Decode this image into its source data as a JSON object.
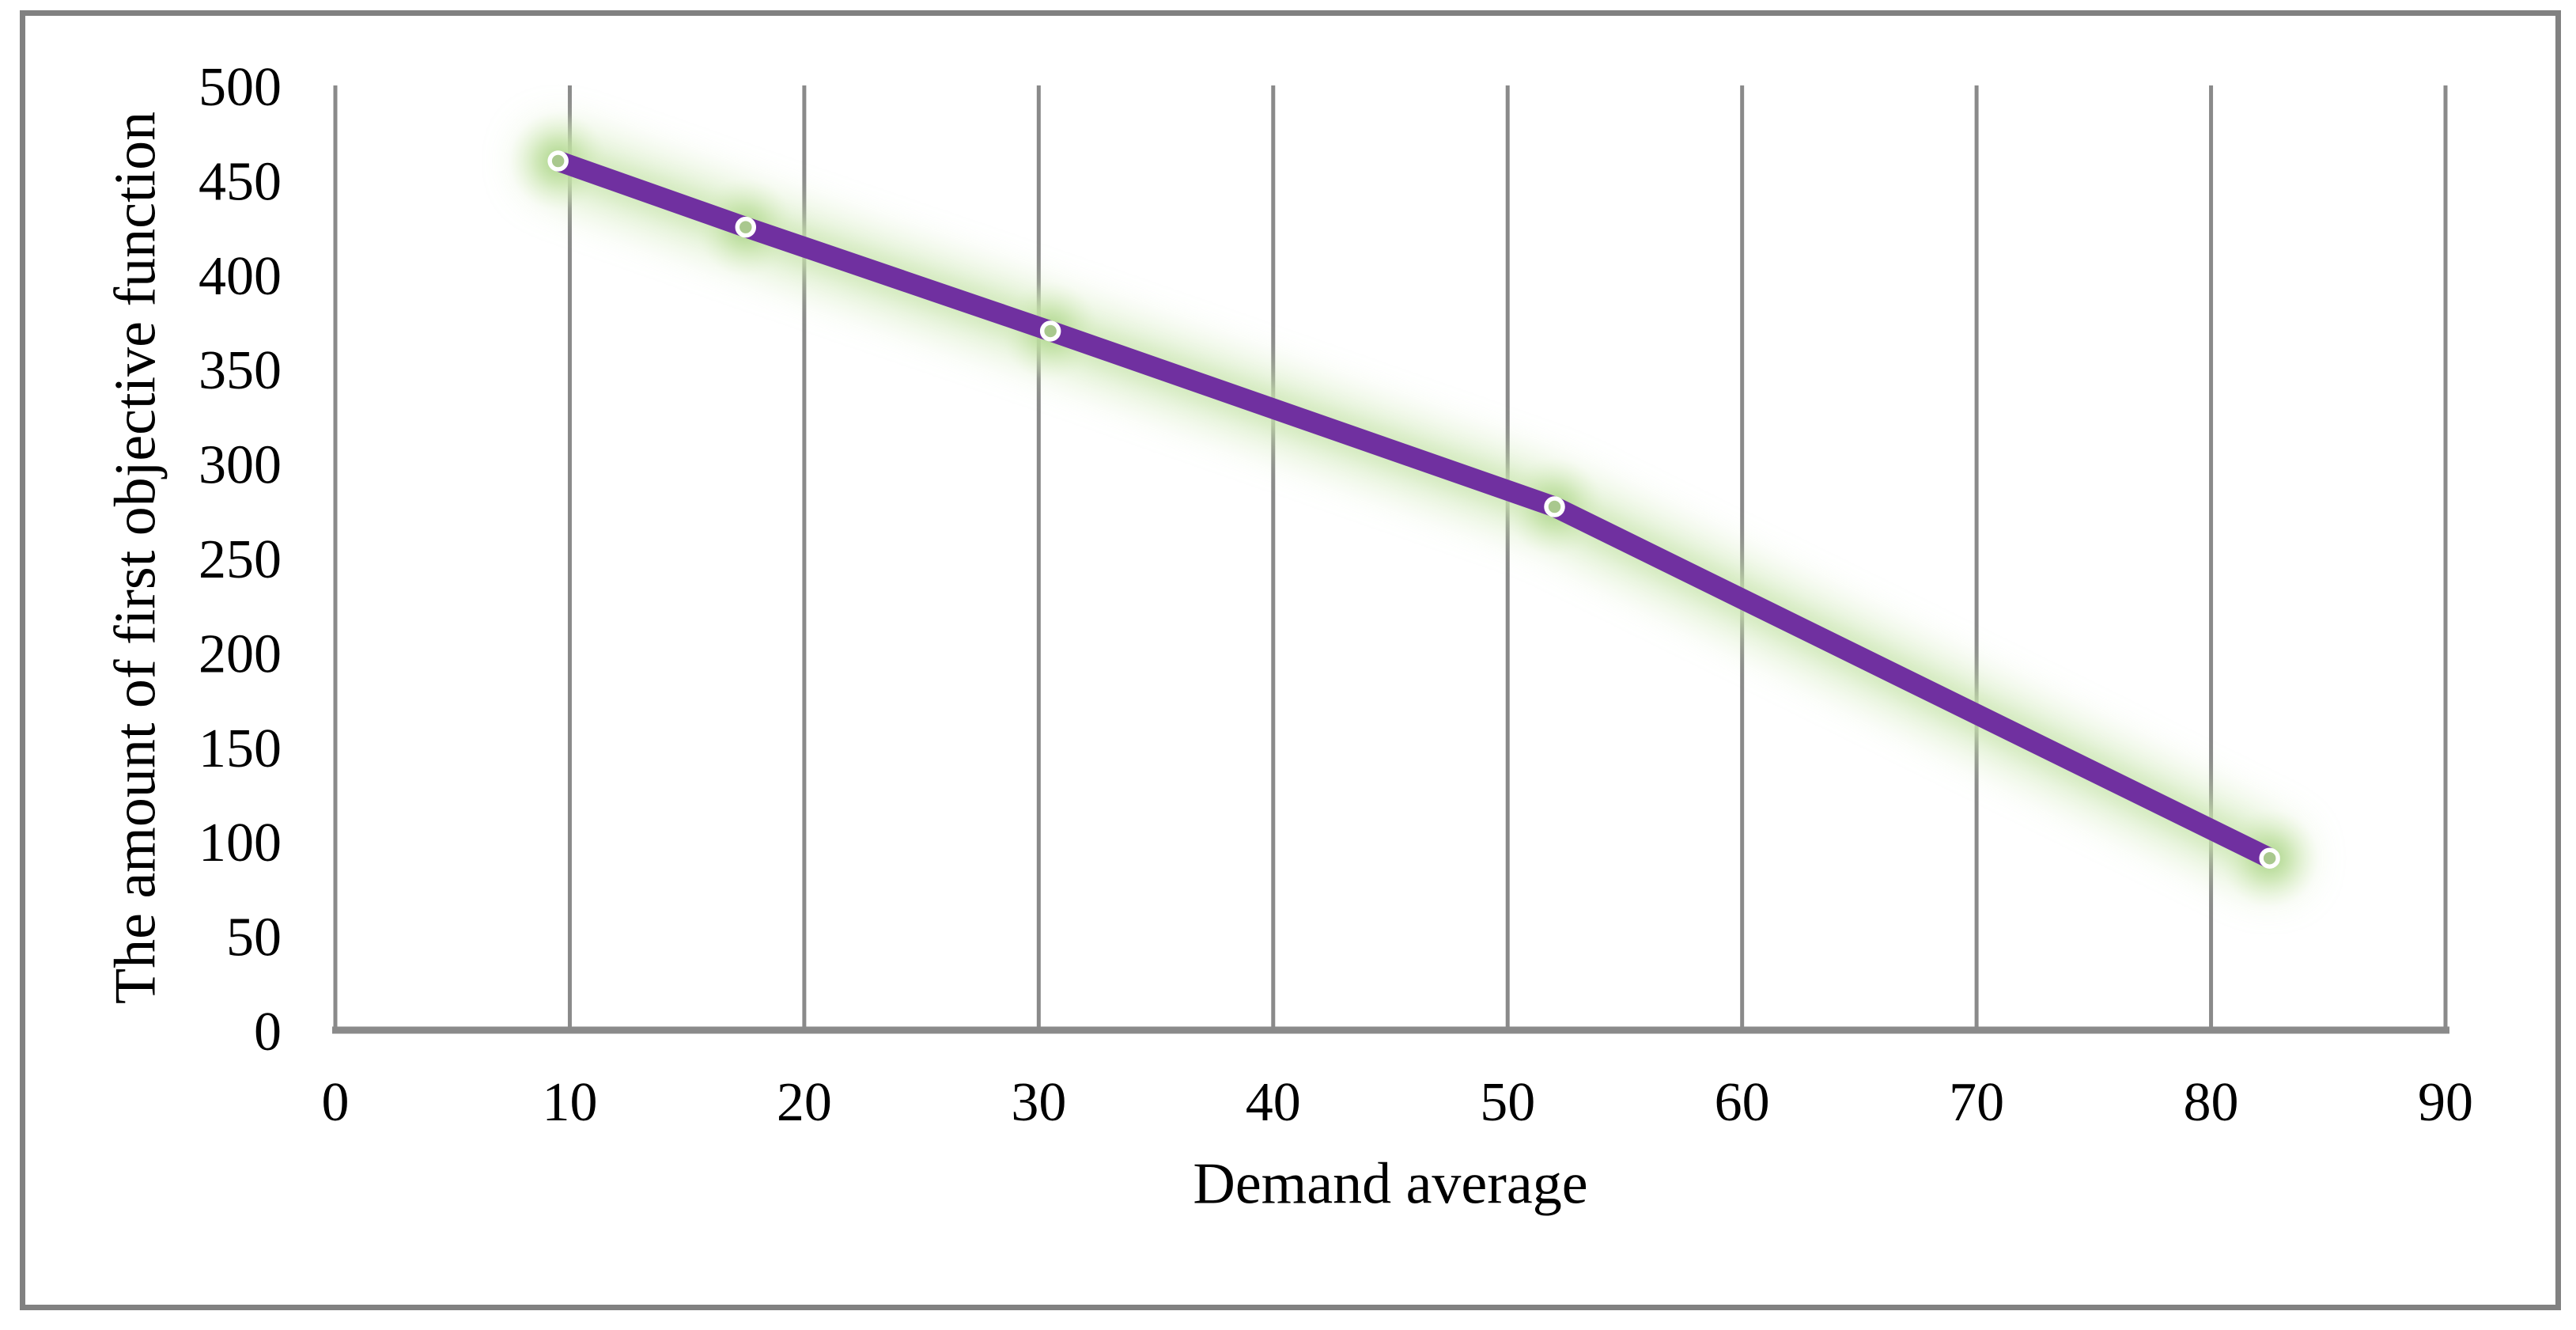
{
  "chart_data": {
    "type": "line",
    "title": "",
    "xlabel": "Demand average",
    "ylabel": "The amount of first objective function",
    "series": [
      {
        "name": "first objective function",
        "x": [
          9.5,
          17.5,
          30.5,
          52,
          82.5
        ],
        "y": [
          460,
          425,
          370,
          277,
          91
        ]
      }
    ],
    "xlim": [
      0,
      90
    ],
    "ylim": [
      0,
      500
    ],
    "x_ticks": [
      0,
      10,
      20,
      30,
      40,
      50,
      60,
      70,
      80,
      90
    ],
    "y_ticks": [
      0,
      50,
      100,
      150,
      200,
      250,
      300,
      350,
      400,
      450,
      500
    ],
    "grid": "vertical-only",
    "legend": "none",
    "marker_style": "circle",
    "colors": {
      "line": "#7030A0",
      "glow": "#C9E5AE",
      "halo": "#A9D388",
      "marker_fill": "#A9C88E",
      "marker_ring": "#FFFFFF",
      "grid": "#8A8A8A",
      "axis": "#8A8A8A",
      "border": "#818181",
      "text": "#000000",
      "background": "#FFFFFF"
    }
  }
}
